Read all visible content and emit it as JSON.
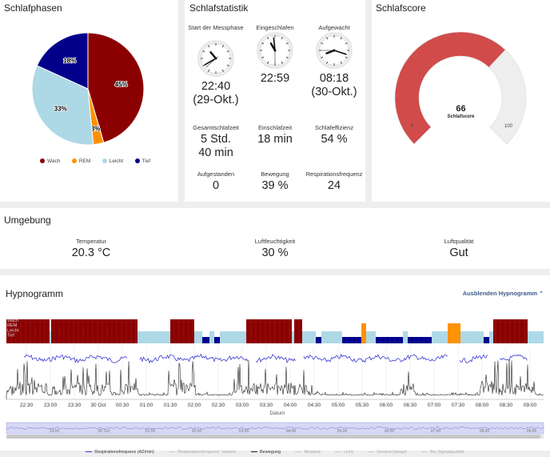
{
  "phases": {
    "title": "Schlafphasen",
    "slices": [
      {
        "label": "Wach",
        "value": 45,
        "color": "#8b0000"
      },
      {
        "label": "REM",
        "value": 3,
        "color": "#ff9100"
      },
      {
        "label": "Leicht",
        "value": 33,
        "color": "#add8e6"
      },
      {
        "label": "Tief",
        "value": 18,
        "color": "#00008b"
      }
    ],
    "pct_labels": [
      "45%",
      "3%",
      "33%",
      "18%"
    ]
  },
  "stats": {
    "title": "Schlafstatistik",
    "start_label": "Start der Messphase",
    "start_value": "22:40",
    "start_date": "(29-Okt.)",
    "asleep_label": "Eingeschlafen",
    "asleep_value": "22:59",
    "woke_label": "Aufgewacht",
    "woke_value": "08:18",
    "woke_date": "(30-Okt.)",
    "total_label": "Gesamtschlafzeit",
    "total_value_1": "5 Std.",
    "total_value_2": "40 min",
    "latency_label": "Einschlafzeit",
    "latency_value": "18 min",
    "efficiency_label": "Schlafeffizienz",
    "efficiency_value": "54 %",
    "up_label": "Aufgestanden",
    "up_value": "0",
    "movement_label": "Bewegung",
    "movement_value": "39 %",
    "resp_label": "Respirationsfrequenz",
    "resp_value": "24"
  },
  "score": {
    "title": "Schlafscore",
    "value": 66,
    "value_text": "66",
    "label": "Schlafscore",
    "min": "0",
    "max": "100",
    "fill_color": "#d14b4b",
    "track_color": "#eeeeee"
  },
  "env": {
    "title": "Umgebung",
    "temp_label": "Temperatur",
    "temp_value": "20.3 °C",
    "hum_label": "Luftfeuchtigkeit",
    "hum_value": "30 %",
    "air_label": "Luftqualität",
    "air_value": "Gut"
  },
  "hypno": {
    "title": "Hypnogramm",
    "toggle": "Ausblenden Hypnogramm",
    "stage_labels": [
      "Wach",
      "REM",
      "Leicht",
      "Tief"
    ],
    "x_ticks": [
      "22:30",
      "23:00",
      "23:30",
      "30 Oct",
      "00:30",
      "01:00",
      "01:30",
      "02:00",
      "02:30",
      "03:00",
      "03:30",
      "04:00",
      "04:30",
      "05:00",
      "05:30",
      "06:00",
      "06:30",
      "07:00",
      "07:30",
      "08:00",
      "08:30",
      "09:00"
    ],
    "x_label": "Datum",
    "nav_ticks": [
      "23:00",
      "30 Oct",
      "01:00",
      "02:00",
      "03:00",
      "04:00",
      "05:00",
      "06:00",
      "07:00",
      "08:00",
      "09:00"
    ],
    "legend": [
      {
        "label": "Respirationsfrequenz (AZ/min)",
        "color": "#3a3ad6",
        "active": true
      },
      {
        "label": "Respirationsfrequenz: Varianz",
        "color": "#cccccc",
        "active": false
      },
      {
        "label": "Bewegung",
        "color": "#222222",
        "active": true
      },
      {
        "label": "Abstand",
        "color": "#cccccc",
        "active": false
      },
      {
        "label": "Licht",
        "color": "#cccccc",
        "active": false
      },
      {
        "label": "Geräuschpegel",
        "color": "#cccccc",
        "active": false
      },
      {
        "label": "Bio-Signalqualität",
        "color": "#cccccc",
        "active": false
      }
    ]
  }
}
